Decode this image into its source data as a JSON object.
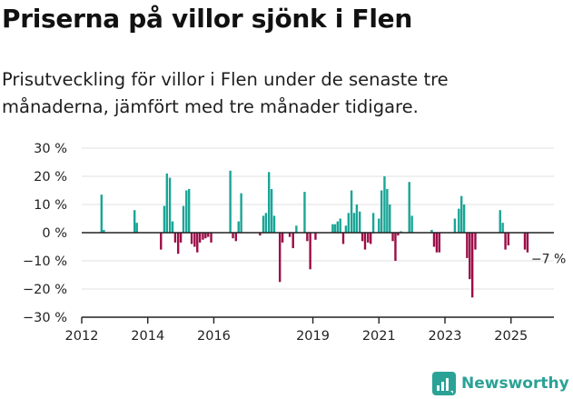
{
  "header": {
    "title": "Priserna på villor sjönk i Flen",
    "subtitle": "Prisutveckling för villor i Flen under de senaste tre månaderna, jämfört med tre månader tidigare."
  },
  "brand": {
    "name": "Newsworthy"
  },
  "colors": {
    "positive": "#1aa596",
    "negative": "#9c0d48",
    "axis": "#222222",
    "grid": "#e2e2e2",
    "brand": "#2aa296"
  },
  "chart_data": {
    "type": "bar",
    "title": "Priserna på villor sjönk i Flen",
    "subtitle": "Prisutveckling för villor i Flen under de senaste tre månaderna, jämfört med tre månader tidigare.",
    "xlabel": "",
    "ylabel": "",
    "unit": "%",
    "ylim": [
      -30,
      30
    ],
    "xlim": [
      2012,
      2026.3
    ],
    "y_ticks": [
      30,
      20,
      10,
      0,
      -10,
      -20,
      -30
    ],
    "y_tick_labels": [
      "30 %",
      "20 %",
      "10 %",
      "0 %",
      "−10 %",
      "−20 %",
      "−30 %"
    ],
    "x_ticks": [
      2012,
      2014,
      2016,
      2019,
      2021,
      2023,
      2025
    ],
    "x_tick_labels": [
      "2012",
      "2014",
      "2016",
      "2019",
      "2021",
      "2023",
      "2025"
    ],
    "grid": true,
    "annotation": {
      "text": "−7 %",
      "x": 2025.5,
      "value": -7
    },
    "x": [
      2012.6,
      2012.67,
      2013.6,
      2013.67,
      2014.4,
      2014.5,
      2014.58,
      2014.67,
      2014.75,
      2014.83,
      2014.92,
      2015.0,
      2015.08,
      2015.17,
      2015.25,
      2015.33,
      2015.42,
      2015.5,
      2015.58,
      2015.67,
      2015.75,
      2015.83,
      2015.92,
      2016.5,
      2016.58,
      2016.67,
      2016.75,
      2016.83,
      2017.4,
      2017.5,
      2017.58,
      2017.67,
      2017.75,
      2017.83,
      2018.0,
      2018.08,
      2018.3,
      2018.4,
      2018.5,
      2018.75,
      2018.83,
      2018.92,
      2019.08,
      2019.6,
      2019.67,
      2019.75,
      2019.83,
      2019.92,
      2020.0,
      2020.08,
      2020.17,
      2020.25,
      2020.33,
      2020.42,
      2020.5,
      2020.58,
      2020.67,
      2020.75,
      2020.83,
      2021.0,
      2021.08,
      2021.17,
      2021.25,
      2021.33,
      2021.42,
      2021.5,
      2021.58,
      2021.67,
      2021.92,
      2022.0,
      2022.6,
      2022.67,
      2022.75,
      2022.83,
      2023.3,
      2023.42,
      2023.5,
      2023.58,
      2023.67,
      2023.75,
      2023.83,
      2023.92,
      2024.67,
      2024.75,
      2024.83,
      2024.92,
      2025.42,
      2025.5
    ],
    "values": [
      13.5,
      1,
      8,
      3.5,
      -6,
      9.5,
      21,
      19.5,
      4,
      -3.5,
      -7.5,
      -3.5,
      9.5,
      15,
      15.5,
      -4,
      -5,
      -7,
      -3.5,
      -2.5,
      -2,
      -1.5,
      -3.5,
      22,
      -2,
      -3,
      4,
      14,
      -1,
      6,
      7,
      21.5,
      15.5,
      6,
      -17.5,
      -3.5,
      -1.5,
      -5.5,
      2.5,
      14.5,
      -3,
      -13,
      -2.5,
      3,
      3,
      4,
      5,
      -4,
      2.5,
      7,
      15,
      7,
      10,
      7.5,
      -3,
      -6,
      -3.5,
      -4,
      7,
      5,
      15,
      20,
      15.5,
      10,
      -3,
      -10,
      -1,
      0.5,
      18,
      6,
      1,
      -5,
      -7,
      -7,
      5,
      8.5,
      13,
      10,
      -9,
      -16.5,
      -23,
      -6,
      8,
      3.5,
      -6,
      -4.5,
      -6,
      -7
    ]
  }
}
